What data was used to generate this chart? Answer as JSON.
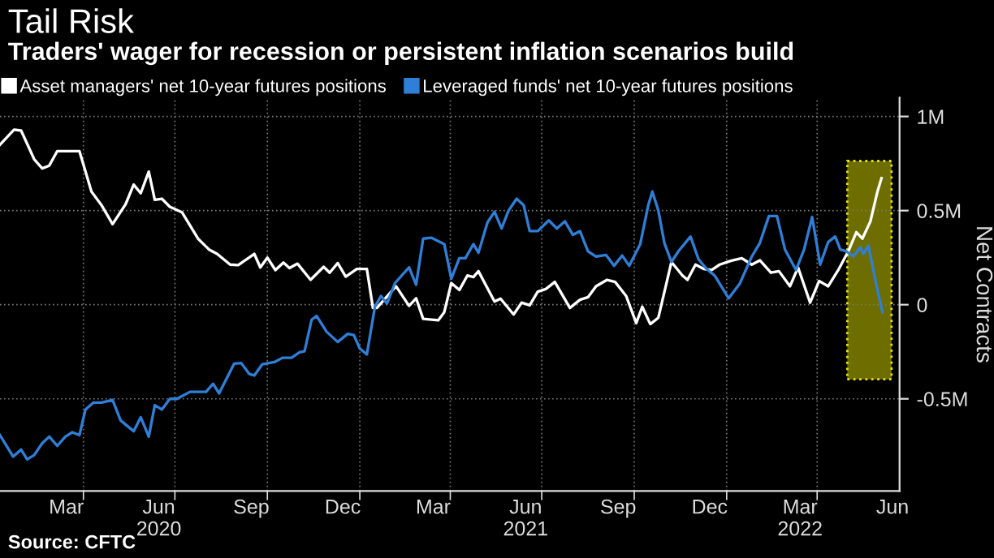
{
  "chart_data": {
    "type": "line",
    "title": "Tail Risk",
    "subtitle": "Traders' wager for recession or persistent inflation scenarios build",
    "ylabel": "Net Contracts",
    "series": [
      {
        "name": "Asset managers' net 10-year futures positions",
        "color": "#ffffff",
        "x": [
          "2020-01-09",
          "2020-01-23",
          "2020-01-30",
          "2020-02-12",
          "2020-02-20",
          "2020-02-27",
          "2020-03-06",
          "2020-03-28",
          "2020-04-09",
          "2020-04-19",
          "2020-04-30",
          "2020-05-13",
          "2020-05-21",
          "2020-05-28",
          "2020-06-05",
          "2020-06-11",
          "2020-06-18",
          "2020-06-26",
          "2020-07-08",
          "2020-07-24",
          "2020-08-04",
          "2020-08-12",
          "2020-08-25",
          "2020-09-02",
          "2020-09-18",
          "2020-09-24",
          "2020-10-01",
          "2020-10-09",
          "2020-10-17",
          "2020-10-23",
          "2020-10-31",
          "2020-11-13",
          "2020-11-26",
          "2020-12-02",
          "2020-12-10",
          "2020-12-18",
          "2020-12-29",
          "2021-01-08",
          "2021-01-14",
          "2021-01-18",
          "2021-02-06",
          "2021-02-19",
          "2021-02-26",
          "2021-03-05",
          "2021-03-20",
          "2021-03-26",
          "2021-04-02",
          "2021-04-10",
          "2021-04-18",
          "2021-04-24",
          "2021-04-29",
          "2021-05-15",
          "2021-05-21",
          "2021-06-03",
          "2021-06-11",
          "2021-06-19",
          "2021-06-27",
          "2021-07-05",
          "2021-07-14",
          "2021-07-29",
          "2021-08-08",
          "2021-08-16",
          "2021-08-24",
          "2021-09-04",
          "2021-09-12",
          "2021-09-23",
          "2021-10-03",
          "2021-10-09",
          "2021-10-17",
          "2021-10-25",
          "2021-11-02",
          "2021-11-07",
          "2021-11-18",
          "2021-11-23",
          "2021-12-01",
          "2021-12-09",
          "2021-12-17",
          "2021-12-25",
          "2022-01-05",
          "2022-01-16",
          "2022-01-26",
          "2022-02-03",
          "2022-02-14",
          "2022-02-22",
          "2022-03-05",
          "2022-03-13",
          "2022-03-25",
          "2022-04-03",
          "2022-04-12",
          "2022-04-22",
          "2022-05-02",
          "2022-05-10",
          "2022-05-16",
          "2022-05-24",
          "2022-05-31",
          "2022-06-04"
        ],
        "values": [
          0.85,
          0.93,
          0.925,
          0.773,
          0.724,
          0.739,
          0.816,
          0.816,
          0.601,
          0.529,
          0.428,
          0.534,
          0.638,
          0.592,
          0.707,
          0.557,
          0.563,
          0.52,
          0.491,
          0.351,
          0.293,
          0.27,
          0.213,
          0.21,
          0.27,
          0.198,
          0.25,
          0.184,
          0.224,
          0.195,
          0.218,
          0.132,
          0.201,
          0.17,
          0.221,
          0.149,
          0.19,
          0.19,
          -0.017,
          -0.017,
          0.098,
          -0.006,
          0.034,
          -0.075,
          -0.083,
          -0.04,
          0.115,
          0.078,
          0.155,
          0.147,
          0.178,
          0.017,
          0.032,
          -0.052,
          0.011,
          -0.003,
          0.069,
          0.083,
          0.121,
          -0.017,
          0.026,
          0.04,
          0.098,
          0.132,
          0.121,
          0.046,
          -0.098,
          -0.011,
          -0.103,
          -0.069,
          0.112,
          0.227,
          0.155,
          0.132,
          0.213,
          0.19,
          0.184,
          0.213,
          0.233,
          0.247,
          0.213,
          0.236,
          0.17,
          0.178,
          0.098,
          0.198,
          0.011,
          0.126,
          0.098,
          0.184,
          0.284,
          0.385,
          0.351,
          0.443,
          0.601,
          0.672
        ]
      },
      {
        "name": "Leveraged funds' net 10-year futures positions",
        "color": "#2f7fd8",
        "x": [
          "2020-01-09",
          "2020-01-22",
          "2020-01-30",
          "2020-02-05",
          "2020-02-12",
          "2020-02-20",
          "2020-02-27",
          "2020-03-06",
          "2020-03-14",
          "2020-03-21",
          "2020-03-28",
          "2020-04-03",
          "2020-04-11",
          "2020-04-19",
          "2020-04-30",
          "2020-05-08",
          "2020-05-21",
          "2020-05-28",
          "2020-06-05",
          "2020-06-11",
          "2020-06-18",
          "2020-06-26",
          "2020-07-03",
          "2020-07-16",
          "2020-08-01",
          "2020-08-08",
          "2020-08-14",
          "2020-08-29",
          "2020-09-05",
          "2020-09-13",
          "2020-09-18",
          "2020-09-26",
          "2020-10-08",
          "2020-10-16",
          "2020-10-25",
          "2020-11-02",
          "2020-11-07",
          "2020-11-14",
          "2020-11-19",
          "2020-11-29",
          "2020-12-10",
          "2020-12-20",
          "2020-12-26",
          "2021-01-01",
          "2021-01-08",
          "2021-01-16",
          "2021-01-22",
          "2021-01-28",
          "2021-02-05",
          "2021-02-19",
          "2021-02-26",
          "2021-03-05",
          "2021-03-13",
          "2021-03-26",
          "2021-04-02",
          "2021-04-10",
          "2021-04-16",
          "2021-04-24",
          "2021-04-29",
          "2021-05-08",
          "2021-05-15",
          "2021-05-22",
          "2021-05-29",
          "2021-06-06",
          "2021-06-13",
          "2021-06-19",
          "2021-06-27",
          "2021-07-08",
          "2021-07-16",
          "2021-07-24",
          "2021-08-01",
          "2021-08-08",
          "2021-08-16",
          "2021-08-24",
          "2021-09-03",
          "2021-09-11",
          "2021-09-19",
          "2021-09-26",
          "2021-10-07",
          "2021-10-15",
          "2021-10-19",
          "2021-10-25",
          "2021-10-31",
          "2021-11-07",
          "2021-11-14",
          "2021-11-26",
          "2021-12-04",
          "2021-12-12",
          "2021-12-20",
          "2022-01-03",
          "2022-01-14",
          "2022-01-26",
          "2022-02-03",
          "2022-02-12",
          "2022-02-20",
          "2022-02-28",
          "2022-03-11",
          "2022-03-19",
          "2022-03-27",
          "2022-04-04",
          "2022-04-12",
          "2022-04-19",
          "2022-04-24",
          "2022-04-30",
          "2022-05-07",
          "2022-05-14",
          "2022-05-17",
          "2022-05-22",
          "2022-05-30",
          "2022-06-05"
        ],
        "values": [
          -0.693,
          -0.807,
          -0.77,
          -0.822,
          -0.799,
          -0.736,
          -0.701,
          -0.75,
          -0.701,
          -0.678,
          -0.693,
          -0.557,
          -0.52,
          -0.52,
          -0.506,
          -0.615,
          -0.672,
          -0.598,
          -0.701,
          -0.534,
          -0.557,
          -0.5,
          -0.5,
          -0.463,
          -0.463,
          -0.42,
          -0.471,
          -0.313,
          -0.31,
          -0.368,
          -0.376,
          -0.316,
          -0.305,
          -0.282,
          -0.282,
          -0.253,
          -0.247,
          -0.08,
          -0.06,
          -0.144,
          -0.198,
          -0.155,
          -0.161,
          -0.233,
          -0.264,
          -0.011,
          0.046,
          0.006,
          0.115,
          0.198,
          0.106,
          0.351,
          0.356,
          0.322,
          0.138,
          0.247,
          0.247,
          0.322,
          0.276,
          0.437,
          0.494,
          0.405,
          0.5,
          0.563,
          0.529,
          0.391,
          0.391,
          0.448,
          0.405,
          0.443,
          0.371,
          0.391,
          0.284,
          0.256,
          0.264,
          0.207,
          0.261,
          0.207,
          0.322,
          0.529,
          0.601,
          0.5,
          0.328,
          0.227,
          0.284,
          0.362,
          0.241,
          0.19,
          0.155,
          0.034,
          0.112,
          0.256,
          0.328,
          0.471,
          0.471,
          0.293,
          0.184,
          0.293,
          0.466,
          0.213,
          0.333,
          0.362,
          0.293,
          0.284,
          0.256,
          0.305,
          0.27,
          0.313,
          0.103,
          -0.04
        ]
      }
    ],
    "xlim": [
      "2020-01-09",
      "2022-06-22"
    ],
    "xticks": [
      {
        "value": "2020-03-15",
        "label": "Mar"
      },
      {
        "value": "2020-06-15",
        "label": "Jun\n2020"
      },
      {
        "value": "2020-09-15",
        "label": "Sep"
      },
      {
        "value": "2020-12-15",
        "label": "Dec"
      },
      {
        "value": "2021-03-15",
        "label": "Mar"
      },
      {
        "value": "2021-06-15",
        "label": "Jun\n2021"
      },
      {
        "value": "2021-09-15",
        "label": "Sep"
      },
      {
        "value": "2021-12-15",
        "label": "Dec"
      },
      {
        "value": "2022-03-15",
        "label": "Mar\n2022"
      },
      {
        "value": "2022-06-15",
        "label": "Jun"
      },
      {
        "value": "2020-04-01",
        "label": null
      },
      {
        "value": "2020-07-01",
        "label": null
      },
      {
        "value": "2020-10-01",
        "label": null
      },
      {
        "value": "2021-01-01",
        "label": null
      },
      {
        "value": "2021-04-01",
        "label": null
      },
      {
        "value": "2021-07-01",
        "label": null
      },
      {
        "value": "2021-10-01",
        "label": null
      },
      {
        "value": "2022-01-01",
        "label": null
      },
      {
        "value": "2022-04-01",
        "label": null
      }
    ],
    "ylim": [
      -0.99,
      1.1
    ],
    "yticks": [
      {
        "value": 1,
        "label": "1M"
      },
      {
        "value": 0.5,
        "label": "0.5M"
      },
      {
        "value": 0,
        "label": "0"
      },
      {
        "value": -0.5,
        "label": "-0.5M"
      }
    ],
    "bands": [
      {
        "axis": "x",
        "from": "2022-05-01",
        "to": "2022-06-14",
        "color": "#6e6e00"
      }
    ],
    "grid": true,
    "legend": "top left",
    "line_style": "solid",
    "marker": "none",
    "annotations": [
      "Source: CFTC"
    ]
  }
}
